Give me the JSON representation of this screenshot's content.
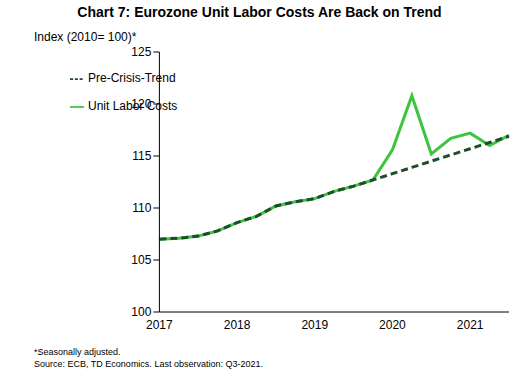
{
  "chart_data": {
    "type": "line",
    "title": "Chart 7: Eurozone Unit Labor Costs Are Back on Trend",
    "y_label": "Index (2010= 100)*",
    "footnotes": [
      "*Seasonally adjusted.",
      "Source: ECB, TD Economics. Last observation: Q3-2021."
    ],
    "categories": [
      "2017",
      null,
      null,
      null,
      "2018",
      null,
      null,
      null,
      "2019",
      null,
      null,
      null,
      "2020",
      null,
      null,
      null,
      "2021",
      null,
      null
    ],
    "series": [
      {
        "name": "Unit Labor Costs",
        "color": "#3ec43e",
        "line_style": "solid",
        "values": [
          107.0,
          107.1,
          107.3,
          107.8,
          108.6,
          109.2,
          110.2,
          110.6,
          110.9,
          111.6,
          112.1,
          112.7,
          115.6,
          120.8,
          115.2,
          116.7,
          117.2,
          116.0,
          117.0
        ]
      },
      {
        "name": "Pre-Crisis-Trend",
        "color": "#1e4d2b",
        "line_style": "dashed",
        "values": [
          107.0,
          107.1,
          107.3,
          107.8,
          108.6,
          109.2,
          110.2,
          110.6,
          110.9,
          111.6,
          112.1,
          112.7,
          113.3,
          113.9,
          114.5,
          115.1,
          115.7,
          116.3,
          116.9
        ]
      }
    ],
    "ylim": [
      100,
      125
    ],
    "yticks": [
      100,
      105,
      110,
      115,
      120,
      125
    ],
    "grid": false,
    "legend": "upper left"
  }
}
